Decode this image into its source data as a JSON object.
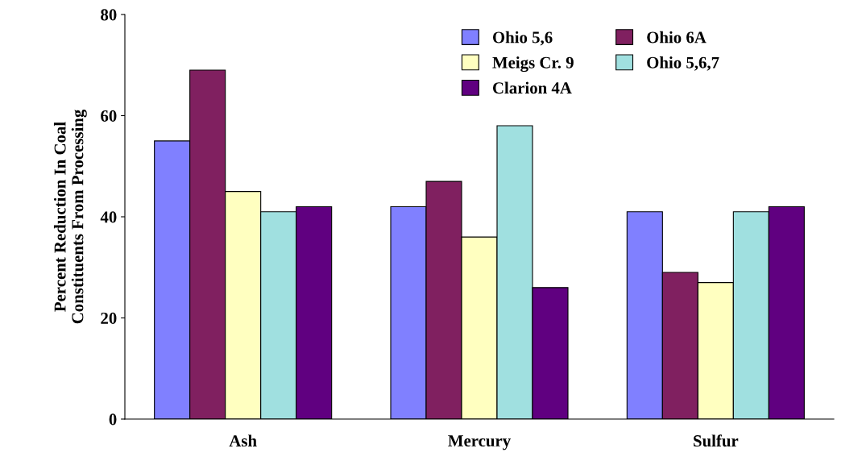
{
  "chart_data": {
    "type": "bar",
    "ylabel": "Percent Reduction In Coal\nConstituents From Processing",
    "categories": [
      "Ash",
      "Mercury",
      "Sulfur"
    ],
    "series": [
      {
        "name": "Ohio 5,6",
        "color": "#8080ff",
        "values": [
          55,
          42,
          41
        ]
      },
      {
        "name": "Ohio 6A",
        "color": "#802060",
        "values": [
          69,
          47,
          29
        ]
      },
      {
        "name": "Meigs Cr. 9",
        "color": "#ffffc0",
        "values": [
          45,
          36,
          27
        ]
      },
      {
        "name": "Ohio 5,6,7",
        "color": "#a0e0e0",
        "values": [
          41,
          58,
          41
        ]
      },
      {
        "name": "Clarion 4A",
        "color": "#600080",
        "values": [
          42,
          26,
          42
        ]
      }
    ],
    "ylim": [
      0,
      80
    ],
    "yticks": [
      0,
      20,
      40,
      60,
      80
    ],
    "grid": false,
    "legend": "top right"
  }
}
